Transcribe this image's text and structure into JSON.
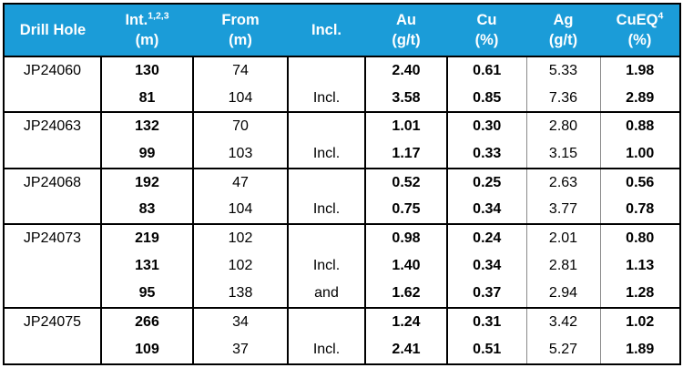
{
  "colors": {
    "header_bg": "#1B9CD8",
    "header_text": "#FFFFFF",
    "body_text": "#000000",
    "border_dark": "#000000",
    "border_light": "#8A8A8A"
  },
  "table": {
    "header": {
      "columns": [
        {
          "line1": "Drill Hole",
          "sup": "",
          "line2": ""
        },
        {
          "line1": "Int.",
          "sup": "1,2,3",
          "line2": "(m)"
        },
        {
          "line1": "From",
          "sup": "",
          "line2": "(m)"
        },
        {
          "line1": "Incl.",
          "sup": "",
          "line2": ""
        },
        {
          "line1": "Au",
          "sup": "",
          "line2": "(g/t)"
        },
        {
          "line1": "Cu",
          "sup": "",
          "line2": "(%)"
        },
        {
          "line1": "Ag",
          "sup": "",
          "line2": "(g/t)"
        },
        {
          "line1": "CuEQ",
          "sup": "4",
          "line2": "(%)"
        }
      ]
    },
    "groups": [
      {
        "hole": "JP24060",
        "intervals": [
          {
            "int": "130",
            "from": "74",
            "incl": "",
            "au": "2.40",
            "cu": "0.61",
            "ag": "5.33",
            "cueq": "1.98"
          },
          {
            "int": "81",
            "from": "104",
            "incl": "Incl.",
            "au": "3.58",
            "cu": "0.85",
            "ag": "7.36",
            "cueq": "2.89"
          }
        ]
      },
      {
        "hole": "JP24063",
        "intervals": [
          {
            "int": "132",
            "from": "70",
            "incl": "",
            "au": "1.01",
            "cu": "0.30",
            "ag": "2.80",
            "cueq": "0.88"
          },
          {
            "int": "99",
            "from": "103",
            "incl": "Incl.",
            "au": "1.17",
            "cu": "0.33",
            "ag": "3.15",
            "cueq": "1.00"
          }
        ]
      },
      {
        "hole": "JP24068",
        "intervals": [
          {
            "int": "192",
            "from": "47",
            "incl": "",
            "au": "0.52",
            "cu": "0.25",
            "ag": "2.63",
            "cueq": "0.56"
          },
          {
            "int": "83",
            "from": "104",
            "incl": "Incl.",
            "au": "0.75",
            "cu": "0.34",
            "ag": "3.77",
            "cueq": "0.78"
          }
        ]
      },
      {
        "hole": "JP24073",
        "intervals": [
          {
            "int": "219",
            "from": "102",
            "incl": "",
            "au": "0.98",
            "cu": "0.24",
            "ag": "2.01",
            "cueq": "0.80"
          },
          {
            "int": "131",
            "from": "102",
            "incl": "Incl.",
            "au": "1.40",
            "cu": "0.34",
            "ag": "2.81",
            "cueq": "1.13"
          },
          {
            "int": "95",
            "from": "138",
            "incl": "and",
            "au": "1.62",
            "cu": "0.37",
            "ag": "2.94",
            "cueq": "1.28"
          }
        ]
      },
      {
        "hole": "JP24075",
        "intervals": [
          {
            "int": "266",
            "from": "34",
            "incl": "",
            "au": "1.24",
            "cu": "0.31",
            "ag": "3.42",
            "cueq": "1.02"
          },
          {
            "int": "109",
            "from": "37",
            "incl": "Incl.",
            "au": "2.41",
            "cu": "0.51",
            "ag": "5.27",
            "cueq": "1.89"
          }
        ]
      }
    ]
  }
}
